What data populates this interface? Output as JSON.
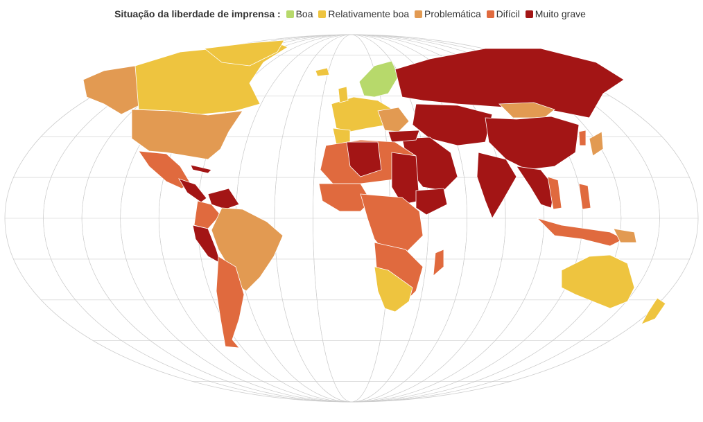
{
  "legend": {
    "title": "Situação da liberdade de imprensa :",
    "items": [
      {
        "label": "Boa",
        "color": "#b7d96b"
      },
      {
        "label": "Relativamente boa",
        "color": "#eec43f"
      },
      {
        "label": "Problemática",
        "color": "#e29a52"
      },
      {
        "label": "Difícil",
        "color": "#e06a3e"
      },
      {
        "label": "Muito grave",
        "color": "#a31515"
      }
    ]
  },
  "map": {
    "projection": "Robinson",
    "graticule": true,
    "background": "#ffffff",
    "graticule_color": "#cccccc"
  }
}
